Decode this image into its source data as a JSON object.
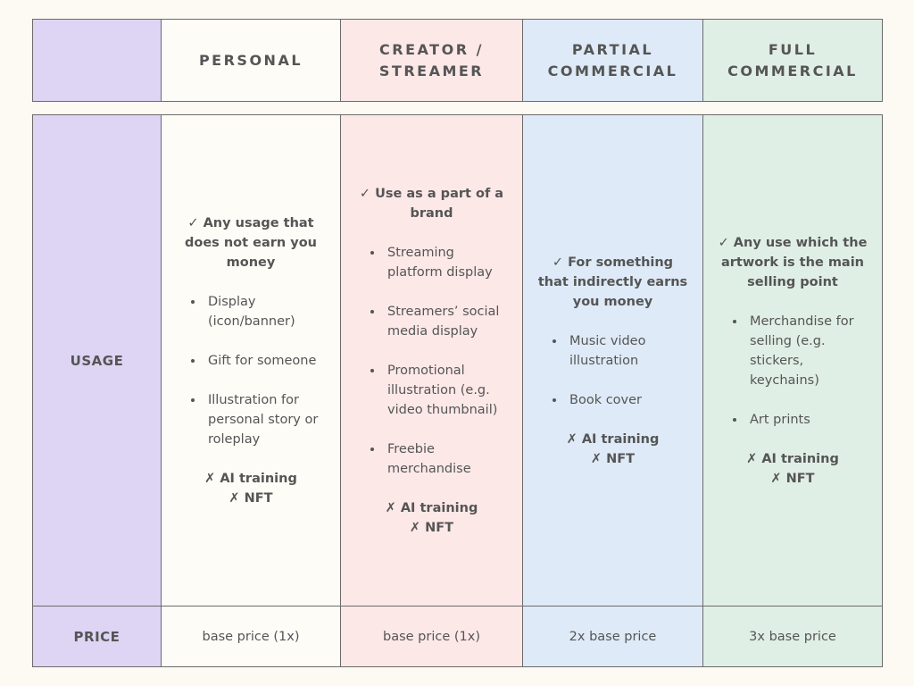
{
  "header": {
    "columns": [
      "PERSONAL",
      "CREATOR / STREAMER",
      "PARTIAL COMMERCIAL",
      "FULL COMMERCIAL"
    ]
  },
  "table": {
    "rows": [
      {
        "label": "USAGE",
        "cells": [
          {
            "allowed": "✓ Any usage that does not earn you money",
            "items": [
              "Display (icon/banner)",
              "Gift for someone",
              "Illustration for personal story or roleplay"
            ],
            "forbidden": [
              "✗ AI training",
              "✗ NFT"
            ]
          },
          {
            "allowed": "✓ Use as a part of a brand",
            "items": [
              "Streaming platform display",
              "Streamers’ social media display",
              "Promotional illustration  (e.g. video thumbnail)",
              "Freebie merchandise"
            ],
            "forbidden": [
              "✗ AI training",
              "✗ NFT"
            ]
          },
          {
            "allowed": "✓ For something that indirectly earns you money",
            "items": [
              "Music video illustration",
              "Book cover"
            ],
            "forbidden": [
              "✗ AI training",
              "✗ NFT"
            ]
          },
          {
            "allowed": "✓ Any use which the artwork is the main selling point",
            "items": [
              "Merchandise for selling (e.g. stickers, keychains)",
              "Art prints"
            ],
            "forbidden": [
              "✗ AI training",
              "✗ NFT"
            ]
          }
        ]
      },
      {
        "label": "PRICE",
        "cells": [
          "base price (1x)",
          "base price (1x)",
          "2x base price",
          "3x base price"
        ]
      }
    ]
  }
}
